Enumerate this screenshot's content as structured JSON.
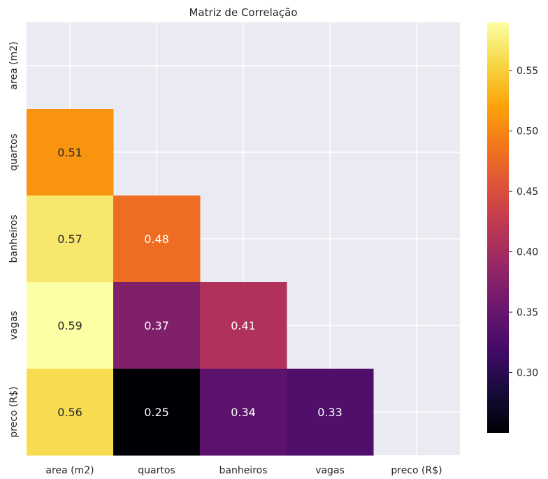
{
  "chart_data": {
    "type": "heatmap",
    "title": "Matriz de Correlação",
    "xlabel": "",
    "ylabel": "",
    "rows": [
      "area (m2)",
      "quartos",
      "banheiros",
      "vagas",
      "preco (R$)"
    ],
    "columns": [
      "area (m2)",
      "quartos",
      "banheiros",
      "vagas",
      "preco (R$)"
    ],
    "mask": "upper-triangle-and-diagonal",
    "values": [
      [
        null,
        null,
        null,
        null,
        null
      ],
      [
        0.51,
        null,
        null,
        null,
        null
      ],
      [
        0.57,
        0.48,
        null,
        null,
        null
      ],
      [
        0.59,
        0.37,
        0.41,
        null,
        null
      ],
      [
        0.56,
        0.25,
        0.34,
        0.33,
        null
      ]
    ],
    "annotations": [
      [
        null,
        null,
        null,
        null,
        null
      ],
      [
        "0.51",
        null,
        null,
        null,
        null
      ],
      [
        "0.57",
        "0.48",
        null,
        null,
        null
      ],
      [
        "0.59",
        "0.37",
        "0.41",
        null,
        null
      ],
      [
        "0.56",
        "0.25",
        "0.34",
        "0.33",
        null
      ]
    ],
    "colormap": "inferno",
    "vmin": 0.25,
    "vmax": 0.59,
    "colorbar": {
      "ticks": [
        0.3,
        0.35,
        0.4,
        0.45,
        0.5,
        0.55
      ],
      "tick_labels": [
        "0.30",
        "0.35",
        "0.40",
        "0.45",
        "0.50",
        "0.55"
      ]
    },
    "grid": true,
    "background": "#eaeaf2",
    "grid_color": "#ffffff"
  }
}
